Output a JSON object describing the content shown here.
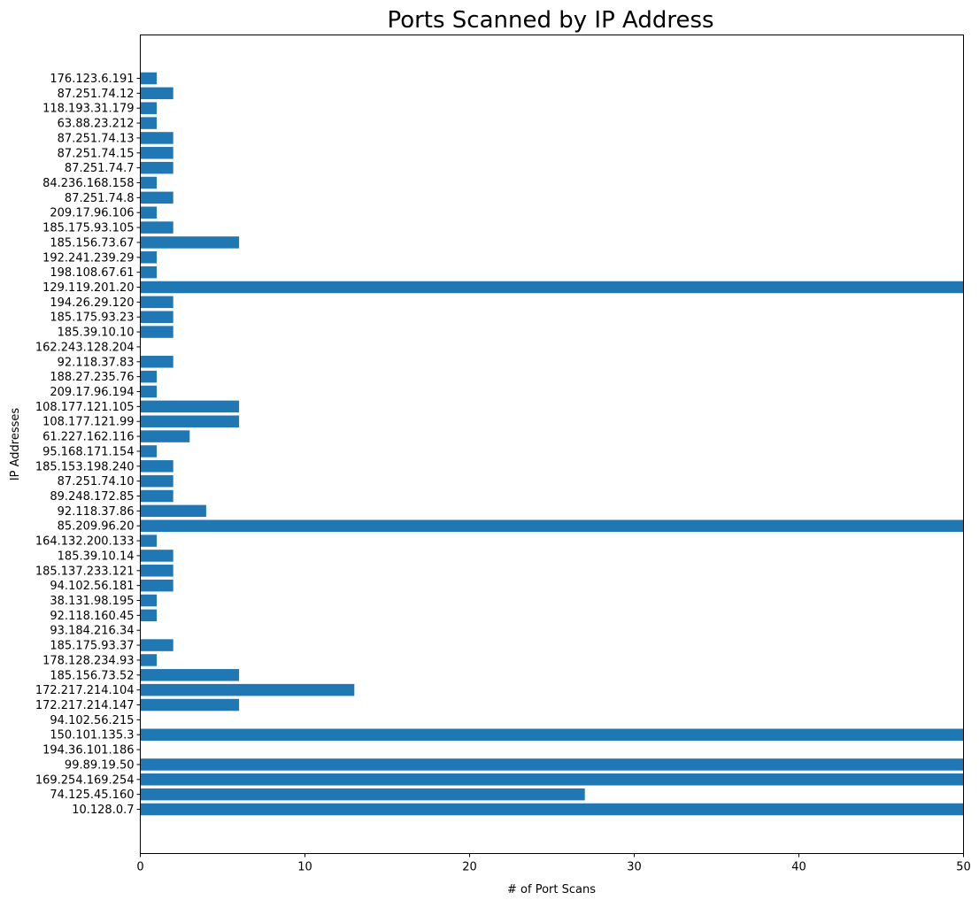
{
  "chart_data": {
    "type": "bar",
    "orientation": "horizontal",
    "title": "Ports Scanned by IP Address",
    "xlabel": "# of Port Scans",
    "ylabel": "IP Addresses",
    "xlim": [
      0,
      50
    ],
    "x_ticks": [
      0,
      10,
      20,
      30,
      40,
      50
    ],
    "grid": false,
    "bar_color": "#1f77b4",
    "categories": [
      "10.128.0.7",
      "74.125.45.160",
      "169.254.169.254",
      "99.89.19.50",
      "194.36.101.186",
      "150.101.135.3",
      "94.102.56.215",
      "172.217.214.147",
      "172.217.214.104",
      "185.156.73.52",
      "178.128.234.93",
      "185.175.93.37",
      "93.184.216.34",
      "92.118.160.45",
      "38.131.98.195",
      "94.102.56.181",
      "185.137.233.121",
      "185.39.10.14",
      "164.132.200.133",
      "85.209.96.20",
      "92.118.37.86",
      "89.248.172.85",
      "87.251.74.10",
      "185.153.198.240",
      "95.168.171.154",
      "61.227.162.116",
      "108.177.121.99",
      "108.177.121.105",
      "209.17.96.194",
      "188.27.235.76",
      "92.118.37.83",
      "162.243.128.204",
      "185.39.10.10",
      "185.175.93.23",
      "194.26.29.120",
      "129.119.201.20",
      "198.108.67.61",
      "192.241.239.29",
      "185.156.73.67",
      "185.175.93.105",
      "209.17.96.106",
      "87.251.74.8",
      "84.236.168.158",
      "87.251.74.7",
      "87.251.74.15",
      "87.251.74.13",
      "63.88.23.212",
      "118.193.31.179",
      "87.251.74.12",
      "176.123.6.191"
    ],
    "values": [
      50,
      27,
      50,
      50,
      0,
      50,
      0,
      6,
      13,
      6,
      1,
      2,
      0,
      1,
      1,
      2,
      2,
      2,
      1,
      50,
      4,
      2,
      2,
      2,
      1,
      3,
      6,
      6,
      1,
      1,
      2,
      0,
      2,
      2,
      2,
      50,
      1,
      1,
      6,
      2,
      1,
      2,
      1,
      2,
      2,
      2,
      1,
      1,
      2,
      1
    ]
  }
}
